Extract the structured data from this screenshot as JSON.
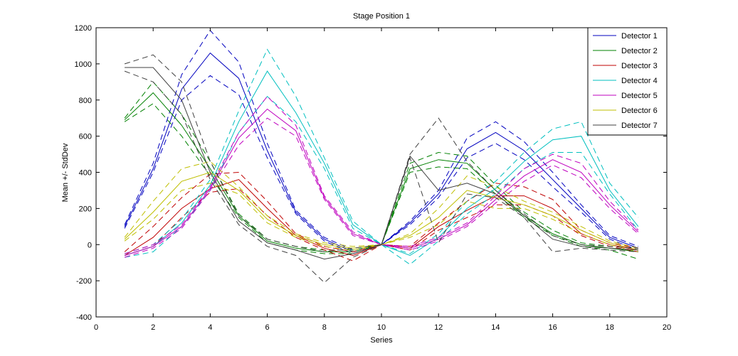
{
  "chart_data": {
    "type": "line",
    "title": "Stage Position 1",
    "xlabel": "Series",
    "ylabel": "Mean +/- StdDev",
    "xlim": [
      0,
      20
    ],
    "ylim": [
      -400,
      1200
    ],
    "xticks": [
      "0",
      "2",
      "4",
      "6",
      "8",
      "10",
      "12",
      "14",
      "16",
      "18",
      "20"
    ],
    "yticks": [
      "-400",
      "-200",
      "0",
      "200",
      "400",
      "600",
      "800",
      "1000",
      "1200"
    ],
    "grid": false,
    "legend_position": "top-right",
    "x": [
      1,
      2,
      3,
      4,
      5,
      6,
      7,
      8,
      9,
      10,
      11,
      12,
      13,
      14,
      15,
      16,
      17,
      18,
      19
    ],
    "series": [
      {
        "name": "Detector 1",
        "color": "#0000bf",
        "mean": [
          100,
          420,
          860,
          1060,
          920,
          520,
          180,
          30,
          -40,
          0,
          120,
          280,
          530,
          620,
          520,
          360,
          200,
          40,
          -20
        ],
        "upper": [
          110,
          450,
          940,
          1185,
          1010,
          560,
          190,
          40,
          -30,
          0,
          130,
          300,
          590,
          680,
          570,
          400,
          220,
          50,
          -10
        ],
        "lower": [
          90,
          400,
          800,
          935,
          830,
          480,
          170,
          20,
          -50,
          0,
          110,
          260,
          480,
          560,
          470,
          320,
          180,
          30,
          -30
        ]
      },
      {
        "name": "Detector 2",
        "color": "#008000",
        "mean": [
          690,
          840,
          660,
          420,
          160,
          20,
          -20,
          -40,
          -40,
          0,
          420,
          470,
          450,
          300,
          160,
          60,
          0,
          -20,
          -40
        ],
        "upper": [
          700,
          900,
          720,
          460,
          170,
          30,
          -10,
          -30,
          -30,
          0,
          450,
          510,
          490,
          330,
          180,
          80,
          10,
          -10,
          -20
        ],
        "lower": [
          680,
          780,
          600,
          380,
          150,
          10,
          -30,
          -50,
          -50,
          0,
          400,
          430,
          420,
          280,
          150,
          50,
          -10,
          -30,
          -80
        ]
      },
      {
        "name": "Detector 3",
        "color": "#bf0000",
        "mean": [
          -60,
          40,
          200,
          310,
          360,
          200,
          50,
          -20,
          -60,
          0,
          -20,
          100,
          190,
          270,
          270,
          200,
          60,
          0,
          -30
        ],
        "upper": [
          -40,
          100,
          260,
          390,
          400,
          240,
          60,
          -10,
          -40,
          0,
          -10,
          120,
          240,
          340,
          320,
          250,
          80,
          10,
          -20
        ],
        "lower": [
          -60,
          -10,
          150,
          290,
          310,
          160,
          40,
          -30,
          -90,
          0,
          -30,
          80,
          150,
          220,
          220,
          160,
          50,
          -10,
          -40
        ]
      },
      {
        "name": "Detector 4",
        "color": "#00bfbf",
        "mean": [
          -60,
          -10,
          120,
          330,
          680,
          960,
          730,
          450,
          110,
          0,
          -60,
          40,
          200,
          310,
          460,
          580,
          600,
          300,
          100
        ],
        "upper": [
          -50,
          0,
          140,
          360,
          740,
          1080,
          820,
          480,
          130,
          0,
          -50,
          60,
          240,
          350,
          510,
          640,
          680,
          340,
          150
        ],
        "lower": [
          -70,
          -40,
          100,
          300,
          620,
          820,
          680,
          420,
          90,
          0,
          -110,
          20,
          170,
          280,
          420,
          510,
          510,
          280,
          80
        ]
      },
      {
        "name": "Detector 5",
        "color": "#bf00bf",
        "mean": [
          -60,
          -10,
          100,
          310,
          590,
          750,
          630,
          260,
          60,
          0,
          -20,
          30,
          110,
          250,
          380,
          470,
          400,
          220,
          70
        ],
        "upper": [
          -50,
          0,
          110,
          320,
          620,
          820,
          660,
          270,
          70,
          0,
          -10,
          40,
          120,
          270,
          420,
          500,
          450,
          240,
          80
        ],
        "lower": [
          -70,
          -20,
          90,
          300,
          550,
          700,
          600,
          250,
          50,
          0,
          -30,
          20,
          100,
          230,
          350,
          440,
          370,
          200,
          60
        ]
      },
      {
        "name": "Detector 6",
        "color": "#bfbf00",
        "mean": [
          30,
          180,
          350,
          400,
          300,
          140,
          50,
          0,
          -20,
          0,
          50,
          150,
          300,
          260,
          220,
          160,
          80,
          10,
          -30
        ],
        "upper": [
          40,
          240,
          420,
          460,
          320,
          160,
          60,
          10,
          -10,
          0,
          60,
          200,
          380,
          320,
          240,
          180,
          100,
          20,
          -20
        ],
        "lower": [
          20,
          140,
          300,
          340,
          280,
          120,
          40,
          -10,
          -30,
          0,
          40,
          110,
          240,
          200,
          200,
          140,
          60,
          0,
          -40
        ]
      },
      {
        "name": "Detector 7",
        "color": "#404040",
        "mean": [
          980,
          980,
          800,
          400,
          130,
          10,
          -30,
          -80,
          -50,
          0,
          490,
          300,
          340,
          280,
          160,
          30,
          -10,
          -20,
          -30
        ],
        "upper": [
          1000,
          1050,
          900,
          460,
          160,
          30,
          -10,
          -40,
          -20,
          0,
          500,
          700,
          460,
          300,
          170,
          50,
          0,
          -10,
          -20
        ],
        "lower": [
          960,
          900,
          720,
          360,
          110,
          -10,
          -60,
          -210,
          -70,
          0,
          480,
          10,
          280,
          260,
          150,
          -40,
          -20,
          -30,
          -40
        ]
      }
    ]
  }
}
